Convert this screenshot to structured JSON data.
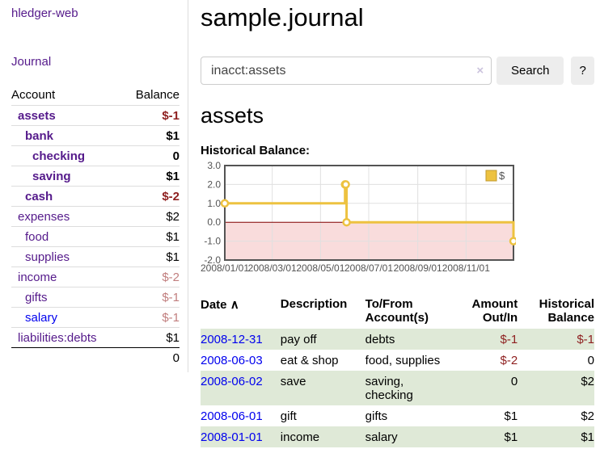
{
  "app": {
    "title": "hledger-web"
  },
  "sidebar": {
    "journal_link": "Journal",
    "headers": {
      "account": "Account",
      "balance": "Balance"
    },
    "accounts": [
      {
        "label": "assets",
        "level": 1,
        "bold": true,
        "unvisited": false,
        "balance": "$-1",
        "negative": "strong"
      },
      {
        "label": "bank",
        "level": 2,
        "bold": true,
        "unvisited": false,
        "balance": "$1",
        "negative": ""
      },
      {
        "label": "checking",
        "level": 3,
        "bold": true,
        "unvisited": false,
        "balance": "0",
        "negative": ""
      },
      {
        "label": "saving",
        "level": 3,
        "bold": true,
        "unvisited": false,
        "balance": "$1",
        "negative": ""
      },
      {
        "label": "cash",
        "level": 2,
        "bold": true,
        "unvisited": false,
        "balance": "$-2",
        "negative": "strong"
      },
      {
        "label": "expenses",
        "level": 1,
        "bold": false,
        "unvisited": false,
        "balance": "$2",
        "negative": ""
      },
      {
        "label": "food",
        "level": 2,
        "bold": false,
        "unvisited": false,
        "balance": "$1",
        "negative": ""
      },
      {
        "label": "supplies",
        "level": 2,
        "bold": false,
        "unvisited": false,
        "balance": "$1",
        "negative": ""
      },
      {
        "label": "income",
        "level": 1,
        "bold": false,
        "unvisited": false,
        "balance": "$-2",
        "negative": "soft"
      },
      {
        "label": "gifts",
        "level": 2,
        "bold": false,
        "unvisited": false,
        "balance": "$-1",
        "negative": "soft"
      },
      {
        "label": "salary",
        "level": 2,
        "bold": false,
        "unvisited": true,
        "balance": "$-1",
        "negative": "soft"
      },
      {
        "label": "liabilities:debts",
        "level": 1,
        "bold": false,
        "unvisited": false,
        "balance": "$1",
        "negative": ""
      }
    ],
    "total": "0"
  },
  "main": {
    "title": "sample.journal",
    "search": {
      "value": "inacct:assets",
      "clear_icon": "×",
      "button_label": "Search",
      "help_label": "?"
    },
    "account_heading": "assets",
    "chart_label": "Historical Balance:",
    "register": {
      "headers": {
        "date": "Date",
        "description": "Description",
        "accounts": "To/From Account(s)",
        "amount": "Amount Out/In",
        "balance": "Historical Balance"
      },
      "sort_icon": "∧",
      "rows": [
        {
          "date": "2008-12-31",
          "description": "pay off",
          "accounts": "debts",
          "amount": "$-1",
          "amount_negative": true,
          "balance": "$-1",
          "balance_negative": true
        },
        {
          "date": "2008-06-03",
          "description": "eat & shop",
          "accounts": "food, supplies",
          "amount": "$-2",
          "amount_negative": true,
          "balance": "0",
          "balance_negative": false
        },
        {
          "date": "2008-06-02",
          "description": "save",
          "accounts": "saving, checking",
          "amount": "0",
          "amount_negative": false,
          "balance": "$2",
          "balance_negative": false
        },
        {
          "date": "2008-06-01",
          "description": "gift",
          "accounts": "gifts",
          "amount": "$1",
          "amount_negative": false,
          "balance": "$2",
          "balance_negative": false
        },
        {
          "date": "2008-01-01",
          "description": "income",
          "accounts": "salary",
          "amount": "$1",
          "amount_negative": false,
          "balance": "$1",
          "balance_negative": false
        }
      ]
    }
  },
  "chart_data": {
    "type": "line",
    "step": true,
    "title": "Historical Balance",
    "series": [
      {
        "name": "$",
        "points": [
          [
            "2008-01-01",
            1
          ],
          [
            "2008-06-01",
            2
          ],
          [
            "2008-06-02",
            2
          ],
          [
            "2008-06-03",
            0
          ],
          [
            "2008-12-31",
            -1
          ]
        ]
      }
    ],
    "x_range": [
      "2008-01-01",
      "2008-12-31"
    ],
    "x_tick_labels": [
      "2008/01/01",
      "2008/03/01",
      "2008/05/01",
      "2008/07/01",
      "2008/09/01",
      "2008/11/01"
    ],
    "y_ticks": [
      3.0,
      2.0,
      1.0,
      0.0,
      -1.0,
      -2.0
    ],
    "ylim": [
      -2,
      3
    ],
    "grid": true,
    "legend": {
      "label": "$",
      "position": "top-right"
    },
    "colors": {
      "line": "#edc240",
      "marker_fill": "#ffffff",
      "zero_line": "#800000",
      "negative_fill": "#f9dcdc",
      "grid": "#e0e0e0",
      "border": "#545454",
      "axis_text": "#545454",
      "legend_swatch_border": "#c19b2f"
    }
  }
}
